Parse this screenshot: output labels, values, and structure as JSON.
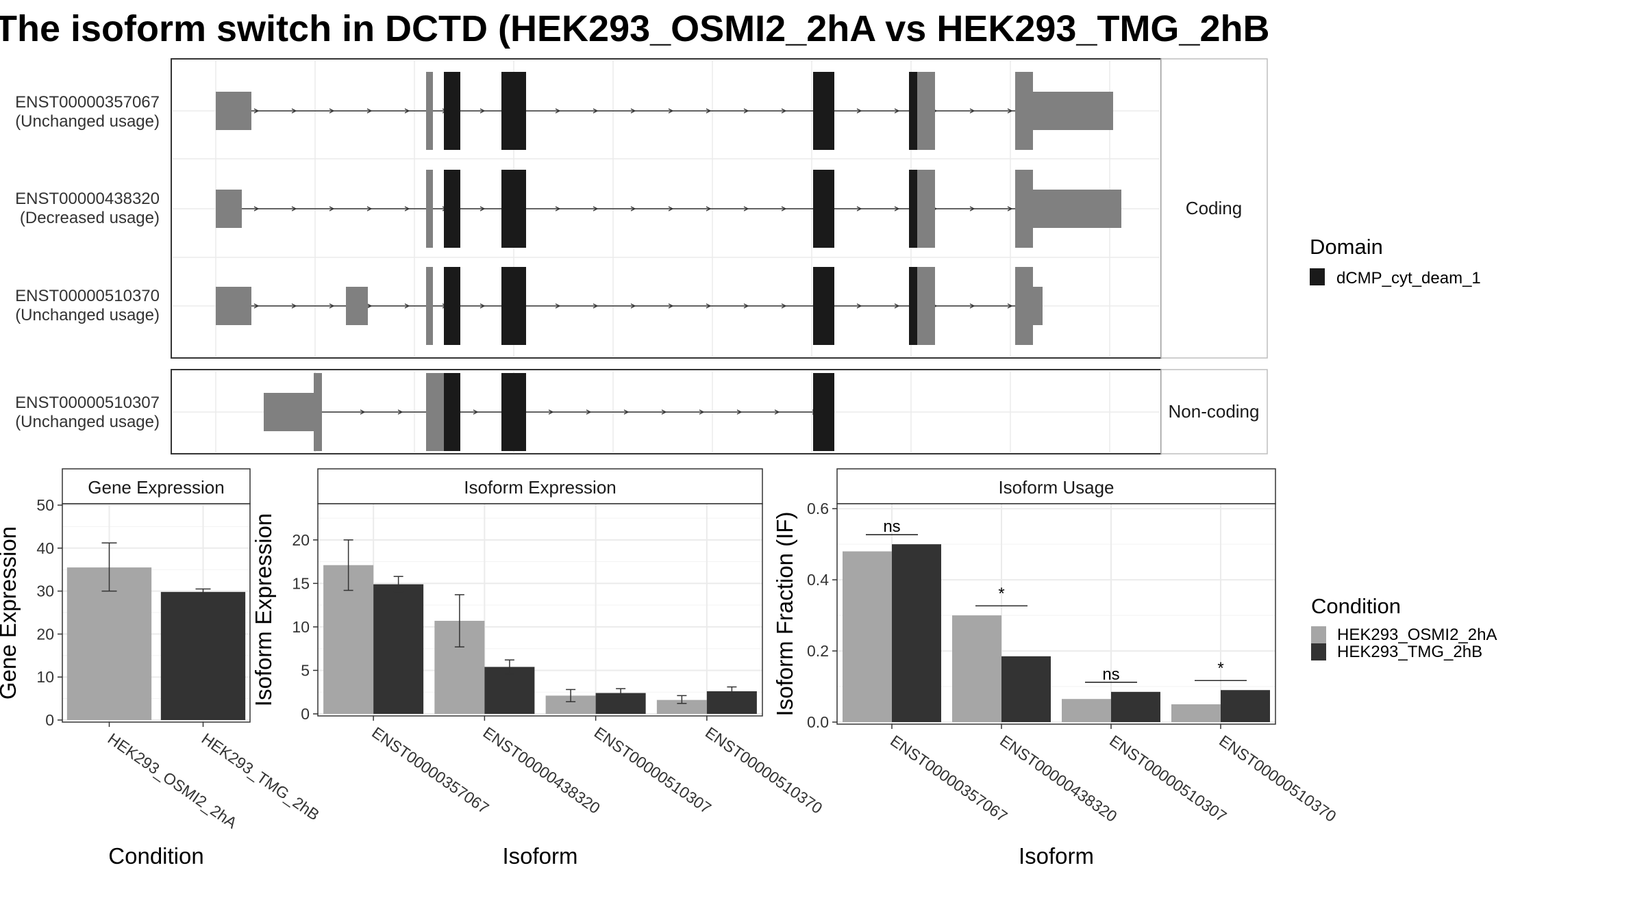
{
  "title": "The isoform switch in DCTD (HEK293_OSMI2_2hA vs HEK293_TMG_2hB",
  "colors": {
    "condition_a": "#a6a6a6",
    "condition_b": "#333333",
    "domain": "#1a1a1a",
    "exon": "#808080"
  },
  "structure_panel": {
    "coding_strip": "Coding",
    "noncoding_strip": "Non-coding",
    "transcripts": [
      {
        "id": "ENST00000357067",
        "usage": "(Unchanged usage)",
        "group": "coding"
      },
      {
        "id": "ENST00000438320",
        "usage": "(Decreased usage)",
        "group": "coding"
      },
      {
        "id": "ENST00000510370",
        "usage": "(Unchanged usage)",
        "group": "coding"
      },
      {
        "id": "ENST00000510307",
        "usage": "(Unchanged usage)",
        "group": "noncoding"
      }
    ]
  },
  "legend_domain": {
    "title": "Domain",
    "items": [
      {
        "label": "dCMP_cyt_deam_1",
        "color": "#1a1a1a"
      }
    ]
  },
  "legend_condition": {
    "title": "Condition",
    "items": [
      {
        "label": "HEK293_OSMI2_2hA",
        "color": "#a6a6a6"
      },
      {
        "label": "HEK293_TMG_2hB",
        "color": "#333333"
      }
    ]
  },
  "chart_data": [
    {
      "type": "bar",
      "title": "Gene Expression",
      "xlabel": "Condition",
      "ylabel": "Gene Expression",
      "ylim": [
        0,
        50
      ],
      "yticks": [
        0,
        10,
        20,
        30,
        40,
        50
      ],
      "categories": [
        "HEK293_OSMI2_2hA",
        "HEK293_TMG_2hB"
      ],
      "values": [
        35.5,
        29.8
      ],
      "error_low": [
        30,
        29.2
      ],
      "error_high": [
        41.2,
        30.5
      ],
      "colors": [
        "#a6a6a6",
        "#333333"
      ]
    },
    {
      "type": "bar",
      "title": "Isoform Expression",
      "xlabel": "Isoform",
      "ylabel": "Isoform Expression",
      "ylim": [
        0,
        24
      ],
      "yticks": [
        0,
        5,
        10,
        15,
        20
      ],
      "categories": [
        "ENST00000357067",
        "ENST00000438320",
        "ENST00000510307",
        "ENST00000510370"
      ],
      "series": [
        {
          "condition": "HEK293_OSMI2_2hA",
          "values": [
            17.1,
            10.7,
            2.1,
            1.6
          ],
          "error_low": [
            14.2,
            7.7,
            1.4,
            1.2
          ],
          "error_high": [
            20.0,
            13.7,
            2.8,
            2.1
          ]
        },
        {
          "condition": "HEK293_TMG_2hB",
          "values": [
            14.9,
            5.4,
            2.4,
            2.6
          ],
          "error_low": [
            14.0,
            4.6,
            1.9,
            2.0
          ],
          "error_high": [
            15.8,
            6.2,
            2.9,
            3.1
          ]
        }
      ]
    },
    {
      "type": "bar",
      "title": "Isoform Usage",
      "xlabel": "Isoform",
      "ylabel": "Isoform Fraction (IF)",
      "ylim": [
        0,
        0.61
      ],
      "yticks": [
        "0.0",
        "0.2",
        "0.4",
        "0.6"
      ],
      "categories": [
        "ENST00000357067",
        "ENST00000438320",
        "ENST00000510307",
        "ENST00000510370"
      ],
      "series": [
        {
          "condition": "HEK293_OSMI2_2hA",
          "values": [
            0.48,
            0.3,
            0.065,
            0.05
          ]
        },
        {
          "condition": "HEK293_TMG_2hB",
          "values": [
            0.5,
            0.185,
            0.085,
            0.09
          ]
        }
      ],
      "significance": [
        "ns",
        "*",
        "ns",
        "*"
      ]
    }
  ]
}
